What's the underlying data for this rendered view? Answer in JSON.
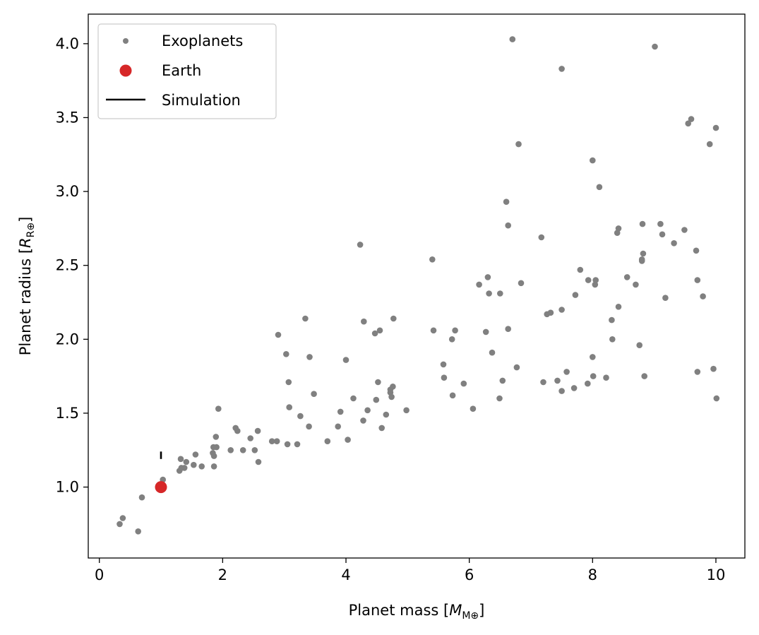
{
  "chart_data": {
    "type": "scatter",
    "xlabel": "Planet mass",
    "xlabel_unit": "M⊕",
    "ylabel": "Planet radius",
    "ylabel_unit": "R⊕",
    "xlim": [
      -0.18,
      10.47
    ],
    "ylim": [
      0.52,
      4.2
    ],
    "xticks": [
      0,
      2,
      4,
      6,
      8,
      10
    ],
    "yticks": [
      1.0,
      1.5,
      2.0,
      2.5,
      3.0,
      3.5,
      4.0
    ],
    "xtick_labels": [
      "0",
      "2",
      "4",
      "6",
      "8",
      "10"
    ],
    "ytick_labels": [
      "1.0",
      "1.5",
      "2.0",
      "2.5",
      "3.0",
      "3.5",
      "4.0"
    ],
    "grid": false,
    "legend_position": "top-left",
    "legend": [
      "Exoplanets",
      "Earth",
      "Simulation"
    ],
    "colors": {
      "exoplanets": "#808080",
      "earth": "#d62728",
      "simulation": "#000000"
    },
    "series": [
      {
        "name": "Exoplanets",
        "marker": "circle-small",
        "points": [
          [
            0.33,
            0.75
          ],
          [
            0.38,
            0.79
          ],
          [
            0.63,
            0.7
          ],
          [
            0.69,
            0.93
          ],
          [
            1.03,
            1.05
          ],
          [
            1.3,
            1.11
          ],
          [
            1.32,
            1.19
          ],
          [
            1.33,
            1.13
          ],
          [
            1.38,
            1.13
          ],
          [
            1.41,
            1.17
          ],
          [
            1.53,
            1.15
          ],
          [
            1.56,
            1.22
          ],
          [
            1.66,
            1.14
          ],
          [
            1.84,
            1.23
          ],
          [
            1.85,
            1.27
          ],
          [
            1.86,
            1.21
          ],
          [
            1.86,
            1.14
          ],
          [
            1.89,
            1.34
          ],
          [
            1.9,
            1.27
          ],
          [
            1.93,
            1.53
          ],
          [
            2.13,
            1.25
          ],
          [
            2.21,
            1.4
          ],
          [
            2.24,
            1.38
          ],
          [
            2.33,
            1.25
          ],
          [
            2.45,
            1.33
          ],
          [
            2.52,
            1.25
          ],
          [
            2.57,
            1.38
          ],
          [
            2.58,
            1.17
          ],
          [
            2.8,
            1.31
          ],
          [
            2.88,
            1.31
          ],
          [
            2.9,
            2.03
          ],
          [
            3.03,
            1.9
          ],
          [
            3.05,
            1.29
          ],
          [
            3.07,
            1.71
          ],
          [
            3.08,
            1.54
          ],
          [
            3.21,
            1.29
          ],
          [
            3.26,
            1.48
          ],
          [
            3.34,
            2.14
          ],
          [
            3.4,
            1.41
          ],
          [
            3.41,
            1.88
          ],
          [
            3.48,
            1.63
          ],
          [
            3.7,
            1.31
          ],
          [
            3.87,
            1.41
          ],
          [
            3.91,
            1.51
          ],
          [
            4.0,
            1.86
          ],
          [
            4.03,
            1.32
          ],
          [
            4.12,
            1.6
          ],
          [
            4.23,
            2.64
          ],
          [
            4.28,
            1.45
          ],
          [
            4.29,
            2.12
          ],
          [
            4.35,
            1.52
          ],
          [
            4.47,
            2.04
          ],
          [
            4.49,
            1.59
          ],
          [
            4.52,
            1.71
          ],
          [
            4.55,
            2.06
          ],
          [
            4.58,
            1.4
          ],
          [
            4.65,
            1.49
          ],
          [
            4.72,
            1.64
          ],
          [
            4.72,
            1.66
          ],
          [
            4.74,
            1.61
          ],
          [
            4.76,
            1.68
          ],
          [
            4.77,
            2.14
          ],
          [
            4.98,
            1.52
          ],
          [
            5.4,
            2.54
          ],
          [
            5.42,
            2.06
          ],
          [
            5.58,
            1.83
          ],
          [
            5.59,
            1.74
          ],
          [
            5.72,
            2.0
          ],
          [
            5.73,
            1.62
          ],
          [
            5.77,
            2.06
          ],
          [
            5.91,
            1.7
          ],
          [
            6.06,
            1.53
          ],
          [
            6.16,
            2.37
          ],
          [
            6.27,
            2.05
          ],
          [
            6.3,
            2.42
          ],
          [
            6.32,
            2.31
          ],
          [
            6.37,
            1.91
          ],
          [
            6.49,
            1.6
          ],
          [
            6.5,
            2.31
          ],
          [
            6.54,
            1.72
          ],
          [
            6.6,
            2.93
          ],
          [
            6.63,
            2.77
          ],
          [
            6.63,
            2.07
          ],
          [
            6.7,
            4.03
          ],
          [
            6.77,
            1.81
          ],
          [
            6.8,
            3.32
          ],
          [
            6.84,
            2.38
          ],
          [
            7.17,
            2.69
          ],
          [
            7.2,
            1.71
          ],
          [
            7.26,
            2.17
          ],
          [
            7.32,
            2.18
          ],
          [
            7.43,
            1.72
          ],
          [
            7.5,
            3.83
          ],
          [
            7.5,
            2.2
          ],
          [
            7.5,
            1.65
          ],
          [
            7.58,
            1.78
          ],
          [
            7.7,
            1.67
          ],
          [
            7.72,
            2.3
          ],
          [
            7.8,
            2.47
          ],
          [
            7.92,
            1.7
          ],
          [
            7.93,
            2.4
          ],
          [
            8.0,
            3.21
          ],
          [
            8.0,
            1.88
          ],
          [
            8.01,
            1.75
          ],
          [
            8.04,
            2.37
          ],
          [
            8.05,
            2.4
          ],
          [
            8.11,
            3.03
          ],
          [
            8.22,
            1.74
          ],
          [
            8.31,
            2.13
          ],
          [
            8.32,
            2.0
          ],
          [
            8.4,
            2.72
          ],
          [
            8.42,
            2.75
          ],
          [
            8.42,
            2.22
          ],
          [
            8.56,
            2.42
          ],
          [
            8.7,
            2.37
          ],
          [
            8.76,
            1.96
          ],
          [
            8.8,
            2.53
          ],
          [
            8.8,
            2.54
          ],
          [
            8.81,
            2.78
          ],
          [
            8.82,
            2.58
          ],
          [
            8.84,
            1.75
          ],
          [
            9.01,
            3.98
          ],
          [
            9.1,
            2.78
          ],
          [
            9.13,
            2.71
          ],
          [
            9.18,
            2.28
          ],
          [
            9.32,
            2.65
          ],
          [
            9.49,
            2.74
          ],
          [
            9.55,
            3.46
          ],
          [
            9.6,
            3.49
          ],
          [
            9.68,
            2.6
          ],
          [
            9.7,
            2.4
          ],
          [
            9.7,
            1.78
          ],
          [
            9.79,
            2.29
          ],
          [
            9.9,
            3.32
          ],
          [
            9.96,
            1.8
          ],
          [
            10.0,
            3.43
          ],
          [
            10.01,
            1.6
          ]
        ]
      },
      {
        "name": "Earth",
        "marker": "circle-large",
        "points": [
          [
            1.0,
            1.0
          ]
        ]
      },
      {
        "name": "Simulation",
        "marker": "line",
        "segments": [
          {
            "x": 1.0,
            "y0": 1.19,
            "y1": 1.24
          }
        ]
      }
    ]
  }
}
